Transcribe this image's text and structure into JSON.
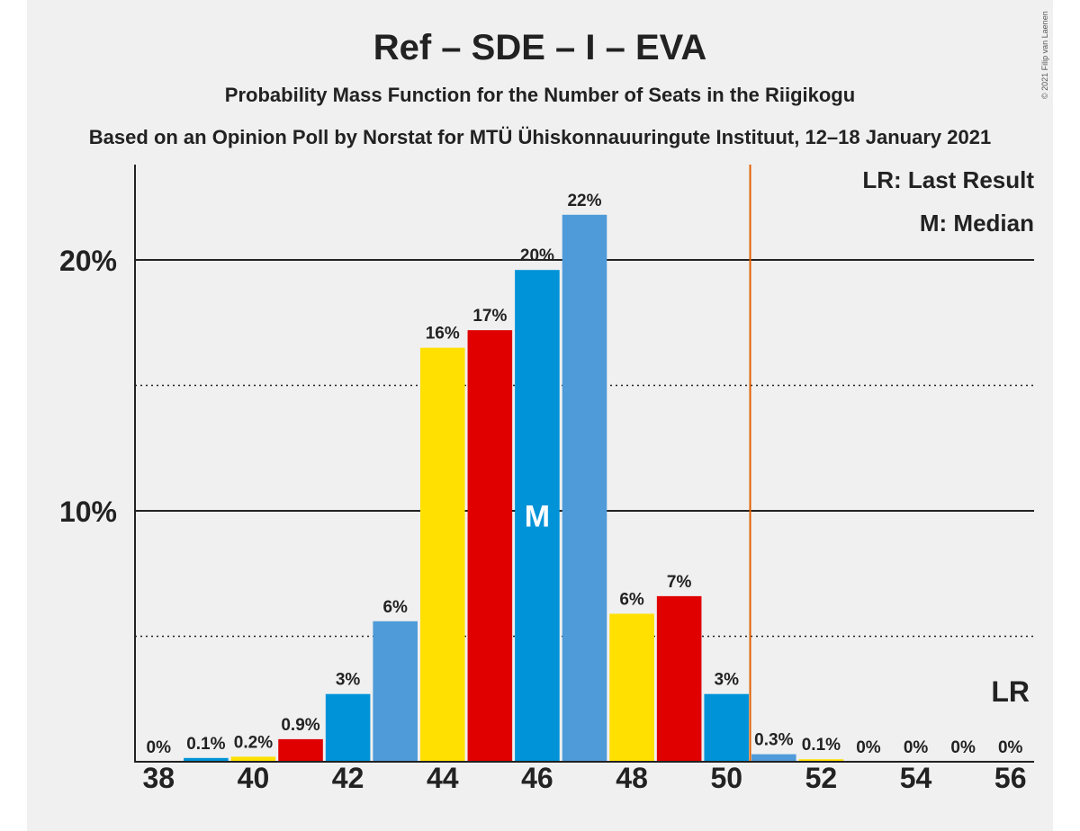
{
  "chart_data": {
    "type": "bar",
    "title": "Ref – SDE – I – EVA",
    "subtitle": "Probability Mass Function for the Number of Seats in the Riigikogu",
    "subtitle2": "Based on an Opinion Poll by Norstat for MTÜ Ühiskonnauuringute Instituut, 12–18 January 2021",
    "copyright": "© 2021 Filip van Laenen",
    "x": [
      38,
      39,
      40,
      41,
      42,
      43,
      44,
      45,
      46,
      47,
      48,
      49,
      50,
      51,
      52,
      53,
      54,
      55,
      56
    ],
    "values": [
      0,
      0.1,
      0.2,
      0.9,
      3,
      6,
      16,
      17,
      20,
      22,
      6,
      7,
      3,
      0.3,
      0.1,
      0,
      0,
      0,
      0
    ],
    "plot_values": [
      0,
      0.15,
      0.2,
      0.9,
      2.7,
      5.6,
      16.5,
      17.2,
      19.6,
      21.8,
      5.9,
      6.6,
      2.7,
      0.3,
      0.1,
      0,
      0,
      0,
      0
    ],
    "labels": [
      "0%",
      "0.1%",
      "0.2%",
      "0.9%",
      "3%",
      "6%",
      "16%",
      "17%",
      "20%",
      "22%",
      "6%",
      "7%",
      "3%",
      "0.3%",
      "0.1%",
      "0%",
      "0%",
      "0%",
      "0%"
    ],
    "bar_colors": [
      "#4f9bd9",
      "#0093d8",
      "#ffe000",
      "#e00000",
      "#0093d8",
      "#4f9bd9",
      "#ffe000",
      "#e00000",
      "#0093d8",
      "#4f9bd9",
      "#ffe000",
      "#e00000",
      "#0093d8",
      "#4f9bd9",
      "#ffe000",
      "#e00000",
      "#0093d8",
      "#4f9bd9",
      "#ffe000"
    ],
    "xticks": [
      38,
      40,
      42,
      44,
      46,
      48,
      50,
      52,
      54,
      56
    ],
    "xtick_labels": [
      "38",
      "40",
      "42",
      "44",
      "46",
      "48",
      "50",
      "52",
      "54",
      "56"
    ],
    "yticks_major": [
      10,
      20
    ],
    "ytick_labels": [
      "10%",
      "20%"
    ],
    "yticks_minor": [
      5,
      15
    ],
    "ylim": [
      0,
      23.8
    ],
    "xlim": [
      37.5,
      56.5
    ],
    "median": 46,
    "median_label": "M",
    "majority_line": 50.5,
    "majority_line_color": "#e06000",
    "last_result_seat": 56,
    "last_result_label": "LR",
    "legend": [
      "LR: Last Result",
      "M: Median"
    ],
    "legend_position": "top-right"
  }
}
